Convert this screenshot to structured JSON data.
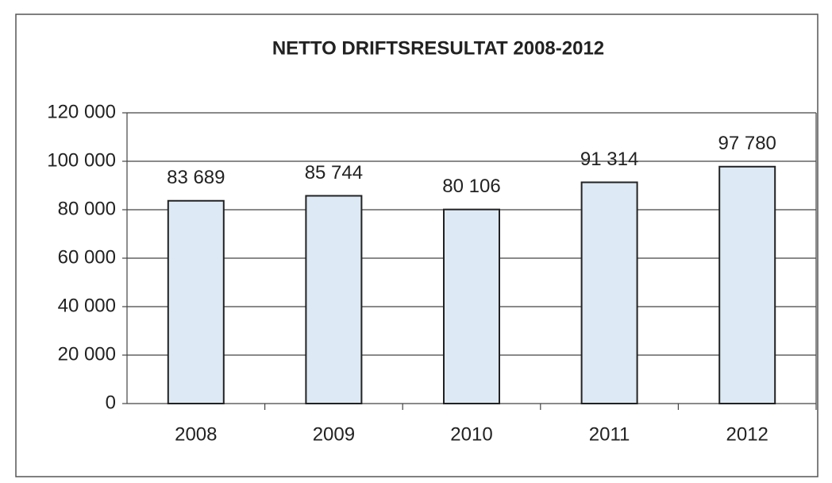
{
  "chart_data": {
    "type": "bar",
    "title": "NETTO DRIFTSRESULTAT 2008-2012",
    "categories": [
      "2008",
      "2009",
      "2010",
      "2011",
      "2012"
    ],
    "values": [
      83689,
      85744,
      80106,
      91314,
      97780
    ],
    "value_labels": [
      "83 689",
      "85 744",
      "80 106",
      "91 314",
      "97 780"
    ],
    "color": "#dde9f4",
    "ylim": [
      0,
      120000
    ],
    "yticks": [
      0,
      {
        "value": 20000,
        "label": "20 000"
      },
      {
        "value": 40000,
        "label": "40 000"
      },
      {
        "value": 60000,
        "label": "60 000"
      },
      {
        "value": 80000,
        "label": "80 000"
      },
      {
        "value": 100000,
        "label": "100 000"
      },
      {
        "value": 120000,
        "label": "120 000"
      }
    ],
    "grid": true
  }
}
